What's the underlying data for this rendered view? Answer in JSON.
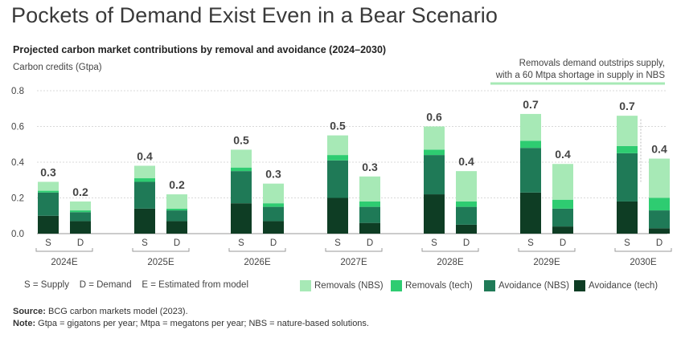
{
  "header": {
    "title": "Pockets of Demand Exist Even in a Bear Scenario",
    "subtitle": "Projected carbon market contributions by removal and avoidance (2024–2030)"
  },
  "callout": {
    "line1": "Removals demand outstrips supply,",
    "line2": "with a 60 Mtpa shortage in supply in NBS",
    "color": "#a7e9b6"
  },
  "legend": {
    "abbreviations": "S = Supply    D = Demand    E = Estimated from model"
  },
  "footer": {
    "source_label": "Source:",
    "source_text": " BCG carbon markets model (2023).",
    "note_label": "Note:",
    "note_text": " Gtpa = gigatons per year; Mtpa = megatons per year; NBS = nature-based solutions."
  },
  "chart_data": {
    "type": "stacked-bar",
    "title": "Projected carbon market contributions by removal and avoidance (2024–2030)",
    "ylabel": "Carbon credits (Gtpa)",
    "ylim": [
      0,
      0.8
    ],
    "yticks": [
      "0.0",
      "0.2",
      "0.4",
      "0.6",
      "0.8"
    ],
    "grid": true,
    "categories": [
      "2024E",
      "2025E",
      "2026E",
      "2027E",
      "2028E",
      "2029E",
      "2030E"
    ],
    "bar_labels": [
      "S",
      "D"
    ],
    "series": [
      {
        "name": "Avoidance (tech)",
        "color": "#0e3d24",
        "supply": [
          0.1,
          0.14,
          0.17,
          0.2,
          0.22,
          0.23,
          0.18
        ],
        "demand": [
          0.07,
          0.07,
          0.07,
          0.06,
          0.05,
          0.04,
          0.03
        ]
      },
      {
        "name": "Avoidance (NBS)",
        "color": "#1f7a57",
        "supply": [
          0.13,
          0.15,
          0.18,
          0.21,
          0.22,
          0.25,
          0.27
        ],
        "demand": [
          0.05,
          0.06,
          0.08,
          0.09,
          0.1,
          0.1,
          0.1
        ]
      },
      {
        "name": "Removals (tech)",
        "color": "#2ecc71",
        "supply": [
          0.01,
          0.02,
          0.02,
          0.03,
          0.03,
          0.04,
          0.04
        ],
        "demand": [
          0.01,
          0.01,
          0.02,
          0.03,
          0.03,
          0.05,
          0.07
        ]
      },
      {
        "name": "Removals (NBS)",
        "color": "#a7e9b6",
        "supply": [
          0.05,
          0.07,
          0.1,
          0.11,
          0.13,
          0.15,
          0.17
        ],
        "demand": [
          0.05,
          0.08,
          0.11,
          0.14,
          0.17,
          0.2,
          0.22
        ]
      }
    ],
    "supply_totals": [
      "0.3",
      "0.4",
      "0.5",
      "0.5",
      "0.6",
      "0.7",
      "0.7"
    ],
    "demand_totals": [
      "0.2",
      "0.2",
      "0.3",
      "0.3",
      "0.4",
      "0.4",
      "0.4"
    ]
  }
}
